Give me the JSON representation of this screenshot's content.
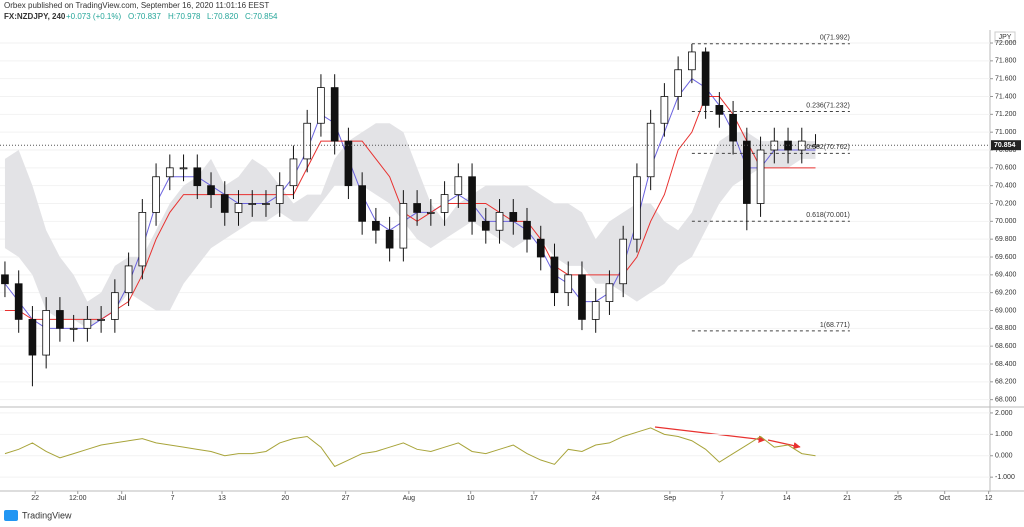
{
  "chart_data": {
    "type": "candlestick",
    "publisher": "Orbex published on TradingView.com, September 16, 2020 11:01:16 EEST",
    "symbol": "FX:NZDJPY, 240",
    "change": "+0.073 (+0.1%)",
    "ohlc_text": [
      "O:70.837",
      "H:70.978",
      "L:70.820",
      "C:70.854"
    ],
    "currency": "JPY",
    "brand": "TradingView",
    "xlim": [
      -0.36,
      71.7
    ],
    "xticks": [
      {
        "value": 2.2,
        "label": "22"
      },
      {
        "value": 5.3,
        "label": "12:00"
      },
      {
        "value": 8.5,
        "label": "Jul"
      },
      {
        "value": 12.2,
        "label": "7"
      },
      {
        "value": 15.8,
        "label": "13"
      },
      {
        "value": 20.4,
        "label": "20"
      },
      {
        "value": 24.8,
        "label": "27"
      },
      {
        "value": 29.4,
        "label": "Aug"
      },
      {
        "value": 33.9,
        "label": "10"
      },
      {
        "value": 38.5,
        "label": "17"
      },
      {
        "value": 43.0,
        "label": "24"
      },
      {
        "value": 48.4,
        "label": "Sep"
      },
      {
        "value": 52.2,
        "label": "7"
      },
      {
        "value": 56.9,
        "label": "14"
      },
      {
        "value": 61.3,
        "label": "21"
      },
      {
        "value": 65.0,
        "label": "25"
      },
      {
        "value": 68.4,
        "label": "Oct"
      },
      {
        "value": 71.6,
        "label": "12"
      }
    ],
    "ylim": [
      67.94,
      72.146
    ],
    "yticks": [
      {
        "value": 68,
        "label": "68.000"
      },
      {
        "value": 68.2,
        "label": "68.200"
      },
      {
        "value": 68.4,
        "label": "68.400"
      },
      {
        "value": 68.6,
        "label": "68.600"
      },
      {
        "value": 68.8,
        "label": "68.800"
      },
      {
        "value": 69,
        "label": "69.000"
      },
      {
        "value": 69.2,
        "label": "69.200"
      },
      {
        "value": 69.4,
        "label": "69.400"
      },
      {
        "value": 69.6,
        "label": "69.600"
      },
      {
        "value": 69.8,
        "label": "69.800"
      },
      {
        "value": 70,
        "label": "70.000"
      },
      {
        "value": 70.2,
        "label": "70.200"
      },
      {
        "value": 70.4,
        "label": "70.400"
      },
      {
        "value": 70.6,
        "label": "70.600"
      },
      {
        "value": 70.8,
        "label": "70.800"
      },
      {
        "value": 71,
        "label": "71.000"
      },
      {
        "value": 71.2,
        "label": "71.200"
      },
      {
        "value": 71.4,
        "label": "71.400"
      },
      {
        "value": 71.6,
        "label": "71.600"
      },
      {
        "value": 71.8,
        "label": "71.800"
      },
      {
        "value": 72,
        "label": "72.000"
      }
    ],
    "last_price": 70.854,
    "open": [
      69.4,
      69.3,
      68.9,
      68.5,
      69.0,
      68.8,
      68.8,
      68.9,
      68.9,
      69.2,
      69.5,
      70.1,
      70.5,
      70.6,
      70.6,
      70.4,
      70.3,
      70.1,
      70.2,
      70.2,
      70.2,
      70.4,
      70.7,
      71.1,
      71.5,
      70.9,
      70.4,
      70.0,
      69.9,
      69.7,
      70.2,
      70.1,
      70.1,
      70.3,
      70.5,
      70.0,
      69.9,
      70.1,
      70.0,
      69.8,
      69.6,
      69.2,
      69.4,
      68.9,
      69.1,
      69.3,
      69.8,
      70.5,
      71.1,
      71.4,
      71.7,
      71.9,
      71.3,
      71.2,
      70.9,
      70.2,
      70.8,
      70.9,
      70.8,
      70.837
    ],
    "high": [
      69.55,
      69.45,
      69.05,
      69.15,
      69.15,
      68.95,
      69.05,
      69.05,
      69.35,
      69.65,
      70.25,
      70.65,
      70.75,
      70.75,
      70.75,
      70.55,
      70.45,
      70.35,
      70.35,
      70.35,
      70.55,
      70.85,
      71.25,
      71.65,
      71.65,
      71.05,
      70.55,
      70.15,
      70.05,
      70.35,
      70.35,
      70.25,
      70.45,
      70.65,
      70.65,
      70.15,
      70.25,
      70.25,
      70.15,
      69.95,
      69.75,
      69.55,
      69.55,
      69.25,
      69.45,
      69.95,
      70.65,
      71.25,
      71.55,
      71.85,
      71.99,
      71.95,
      71.45,
      71.35,
      71.05,
      70.95,
      71.05,
      71.05,
      71.05,
      70.978
    ],
    "low": [
      69.15,
      68.75,
      68.15,
      68.35,
      68.65,
      68.65,
      68.65,
      68.75,
      68.75,
      69.05,
      69.35,
      69.95,
      70.35,
      70.45,
      70.25,
      70.15,
      69.95,
      69.95,
      70.05,
      70.05,
      70.05,
      70.25,
      70.55,
      70.95,
      70.75,
      70.25,
      69.85,
      69.75,
      69.55,
      69.55,
      69.95,
      69.95,
      69.95,
      70.15,
      69.85,
      69.75,
      69.75,
      69.85,
      69.65,
      69.45,
      69.05,
      69.05,
      68.78,
      68.75,
      68.95,
      69.15,
      69.65,
      70.35,
      70.95,
      71.25,
      71.55,
      71.15,
      71.05,
      70.75,
      69.9,
      70.05,
      70.65,
      70.65,
      70.65,
      70.82
    ],
    "close": [
      69.3,
      68.9,
      68.5,
      69.0,
      68.8,
      68.8,
      68.9,
      68.9,
      69.2,
      69.5,
      70.1,
      70.5,
      70.6,
      70.6,
      70.4,
      70.3,
      70.1,
      70.2,
      70.2,
      70.2,
      70.4,
      70.7,
      71.1,
      71.5,
      70.9,
      70.4,
      70.0,
      69.9,
      69.7,
      70.2,
      70.1,
      70.1,
      70.3,
      70.5,
      70.0,
      69.9,
      70.1,
      70.0,
      69.8,
      69.6,
      69.2,
      69.4,
      68.9,
      69.1,
      69.3,
      69.8,
      70.5,
      71.1,
      71.4,
      71.7,
      71.9,
      71.3,
      71.2,
      70.9,
      70.2,
      70.8,
      70.9,
      70.8,
      70.9,
      70.854
    ],
    "series": [
      {
        "color": "#6b63e0",
        "values": [
          69.3,
          69.1,
          68.9,
          68.8,
          68.8,
          68.8,
          68.8,
          68.9,
          69.0,
          69.3,
          69.7,
          70.2,
          70.5,
          70.5,
          70.5,
          70.4,
          70.3,
          70.2,
          70.2,
          70.2,
          70.3,
          70.5,
          70.8,
          71.2,
          71.1,
          70.7,
          70.3,
          70.0,
          69.9,
          70.0,
          70.1,
          70.1,
          70.2,
          70.3,
          70.2,
          70.0,
          70.0,
          70.0,
          69.9,
          69.7,
          69.4,
          69.3,
          69.1,
          69.1,
          69.2,
          69.5,
          70.0,
          70.6,
          71.0,
          71.4,
          71.6,
          71.5,
          71.3,
          71.0,
          70.6,
          70.6,
          70.8,
          70.8,
          70.8,
          70.8
        ]
      },
      {
        "color": "#e8312f",
        "values": [
          69.0,
          69.0,
          68.9,
          68.9,
          68.9,
          68.9,
          68.9,
          68.9,
          69.0,
          69.1,
          69.4,
          69.8,
          70.1,
          70.3,
          70.3,
          70.3,
          70.3,
          70.3,
          70.3,
          70.3,
          70.3,
          70.3,
          70.6,
          70.9,
          70.9,
          70.9,
          70.9,
          70.7,
          70.5,
          70.1,
          70.0,
          70.1,
          70.2,
          70.2,
          70.2,
          70.2,
          70.1,
          70.0,
          70.0,
          69.8,
          69.5,
          69.4,
          69.4,
          69.4,
          69.4,
          69.4,
          69.6,
          70.0,
          70.3,
          70.8,
          71.0,
          71.4,
          71.4,
          71.2,
          70.9,
          70.6,
          70.6,
          70.6,
          70.6,
          70.6
        ]
      }
    ],
    "cloud_color": "#e3e3e6",
    "cloud_upper": [
      70.7,
      70.8,
      70.4,
      69.9,
      69.6,
      69.4,
      69.1,
      69.2,
      69.5,
      69.6,
      69.6,
      69.9,
      70.2,
      70.4,
      70.5,
      70.7,
      70.4,
      70.5,
      70.7,
      70.6,
      70.4,
      70.2,
      70.3,
      70.3,
      70.7,
      70.9,
      71.0,
      71.1,
      71.1,
      71.0,
      70.6,
      70.2,
      70.0,
      70.2,
      70.3,
      70.4,
      70.4,
      70.4,
      70.4,
      70.3,
      70.2,
      70.2,
      70.1,
      69.8,
      70.0,
      70.1,
      70.2,
      70.2,
      70.0,
      69.9,
      70.1,
      70.5,
      70.9,
      71.0,
      71.0,
      70.9,
      70.9,
      70.9,
      70.9,
      70.9
    ],
    "cloud_lower": [
      69.7,
      69.6,
      69.4,
      69.0,
      68.9,
      68.9,
      68.8,
      68.9,
      69.0,
      69.2,
      69.1,
      69.0,
      69.0,
      69.3,
      69.5,
      69.7,
      69.8,
      69.9,
      70.0,
      70.0,
      70.1,
      70.0,
      70.0,
      70.2,
      70.4,
      70.4,
      70.4,
      70.3,
      70.2,
      70.0,
      69.8,
      69.7,
      69.8,
      69.9,
      70.0,
      69.9,
      69.8,
      69.7,
      69.8,
      69.8,
      69.6,
      69.5,
      69.5,
      69.3,
      69.3,
      69.2,
      69.1,
      69.2,
      69.3,
      69.5,
      69.6,
      69.9,
      70.2,
      70.4,
      70.5,
      70.6,
      70.6,
      70.6,
      70.7,
      70.7
    ],
    "fib_levels": [
      {
        "value": 71.992,
        "label": "0(71.992)"
      },
      {
        "value": 71.232,
        "label": "0.236(71.232)"
      },
      {
        "value": 70.762,
        "label": "0.382(70.762)"
      },
      {
        "value": 70.001,
        "label": "0.618(70.001)"
      },
      {
        "value": 68.771,
        "label": "1(68.771)"
      }
    ],
    "oscillator": {
      "color": "#a8a43a",
      "ylim": [
        -1.6,
        2.23
      ],
      "yticks": [
        {
          "value": 2,
          "label": "2.000"
        },
        {
          "value": 1,
          "label": "1.000"
        },
        {
          "value": 0,
          "label": "0.000"
        },
        {
          "value": -1,
          "label": "-1.000"
        }
      ],
      "values": [
        0.1,
        0.3,
        0.6,
        0.2,
        -0.1,
        0.1,
        0.3,
        0.5,
        0.6,
        0.7,
        0.8,
        0.6,
        0.5,
        0.4,
        0.3,
        0.2,
        0.0,
        0.1,
        0.1,
        0.2,
        0.6,
        0.8,
        0.9,
        0.4,
        -0.5,
        -0.2,
        0.1,
        0.2,
        0.4,
        0.6,
        0.3,
        0.2,
        0.4,
        0.6,
        0.2,
        0.1,
        0.3,
        0.5,
        0.1,
        -0.2,
        -0.4,
        0.3,
        0.2,
        0.5,
        0.6,
        0.9,
        1.1,
        1.3,
        1.0,
        0.9,
        0.7,
        0.3,
        -0.3,
        0.1,
        0.5,
        0.9,
        0.4,
        0.5,
        0.1,
        0.0
      ]
    }
  }
}
